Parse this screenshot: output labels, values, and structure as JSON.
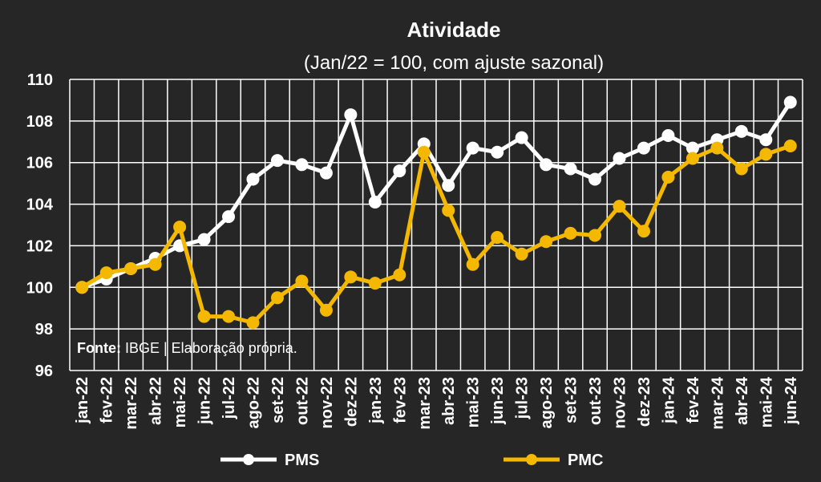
{
  "chart_data": {
    "type": "line",
    "title": "Atividade",
    "subtitle": "(Jan/22 = 100, com ajuste sazonal)",
    "xlabel": "",
    "ylabel": "",
    "ylim": [
      96,
      110
    ],
    "yticks": [
      96,
      98,
      100,
      102,
      104,
      106,
      108,
      110
    ],
    "grid": true,
    "legend_position": "bottom",
    "source_label": "Fonte:",
    "source_text": " IBGE | Elaboração própria.",
    "categories": [
      "jan-22",
      "fev-22",
      "mar-22",
      "abr-22",
      "mai-22",
      "jun-22",
      "jul-22",
      "ago-22",
      "set-22",
      "out-22",
      "nov-22",
      "dez-22",
      "jan-23",
      "fev-23",
      "mar-23",
      "abr-23",
      "mai-23",
      "jun-23",
      "jul-23",
      "ago-23",
      "set-23",
      "out-23",
      "nov-23",
      "dez-23",
      "jan-24",
      "fev-24",
      "mar-24",
      "abr-24",
      "mai-24",
      "jun-24"
    ],
    "series": [
      {
        "name": "PMS",
        "color": "#ffffff",
        "values": [
          100.0,
          100.4,
          100.9,
          101.4,
          102.0,
          102.3,
          103.4,
          105.2,
          106.1,
          105.9,
          105.5,
          108.3,
          104.1,
          105.6,
          106.9,
          104.9,
          106.7,
          106.5,
          107.2,
          105.9,
          105.7,
          105.2,
          106.2,
          106.7,
          107.3,
          106.7,
          107.1,
          107.5,
          107.1,
          108.9
        ]
      },
      {
        "name": "PMC",
        "color": "#f5b800",
        "values": [
          100.0,
          100.7,
          100.9,
          101.1,
          102.9,
          98.6,
          98.6,
          98.3,
          99.5,
          100.3,
          98.9,
          100.5,
          100.2,
          100.6,
          106.5,
          103.7,
          101.1,
          102.4,
          101.6,
          102.2,
          102.6,
          102.5,
          103.9,
          102.7,
          105.3,
          106.2,
          106.7,
          105.7,
          106.4,
          106.8
        ]
      }
    ]
  }
}
